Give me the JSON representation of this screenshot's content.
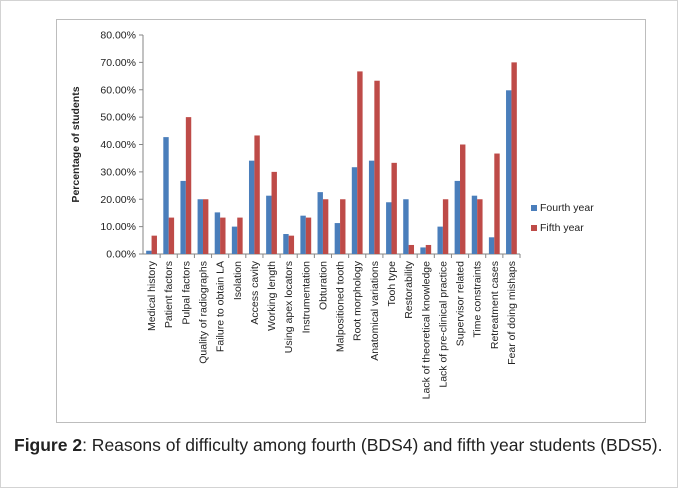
{
  "caption": {
    "label": "Figure 2",
    "text": ": Reasons of difficulty among fourth (BDS4) and fifth year students (BDS5)."
  },
  "chart_data": {
    "type": "bar",
    "ylabel": "Percentage of students",
    "ylim": [
      0,
      80
    ],
    "yticks": [
      "0.00%",
      "10.00%",
      "20.00%",
      "30.00%",
      "40.00%",
      "50.00%",
      "60.00%",
      "70.00%",
      "80.00%"
    ],
    "legend_position": "right",
    "categories": [
      "Medical history",
      "Patient factors",
      "Pulpal factors",
      "Quality of radiographs",
      "Failure to obtain LA",
      "Isolation",
      "Access cavity",
      "Working length",
      "Using apex locators",
      "Instrumentation",
      "Obturation",
      "Malpositioned tooth",
      "Root morphology",
      "Anatomical variations",
      "Tooh type",
      "Restorability",
      "Lack of theoretical knowledge",
      "Lack of pre-clinical practice",
      "Supervisor related",
      "Time constraints",
      "Retreatment cases",
      "Fear of doing mishaps"
    ],
    "series": [
      {
        "name": "Fourth year",
        "color": "#4a7ebb",
        "values": [
          1.2,
          42.7,
          26.7,
          20.0,
          15.2,
          10.0,
          34.1,
          21.3,
          7.3,
          14.0,
          22.6,
          11.3,
          31.7,
          34.1,
          18.9,
          20.0,
          2.4,
          10.0,
          26.7,
          21.3,
          6.1,
          59.8
        ]
      },
      {
        "name": "Fifth year",
        "color": "#be4b48",
        "values": [
          6.7,
          13.3,
          50.0,
          20.0,
          13.3,
          13.3,
          43.3,
          30.0,
          6.7,
          13.3,
          20.0,
          20.0,
          66.7,
          63.3,
          33.3,
          3.3,
          3.3,
          20.0,
          40.0,
          20.0,
          36.7,
          70.0
        ]
      }
    ]
  }
}
